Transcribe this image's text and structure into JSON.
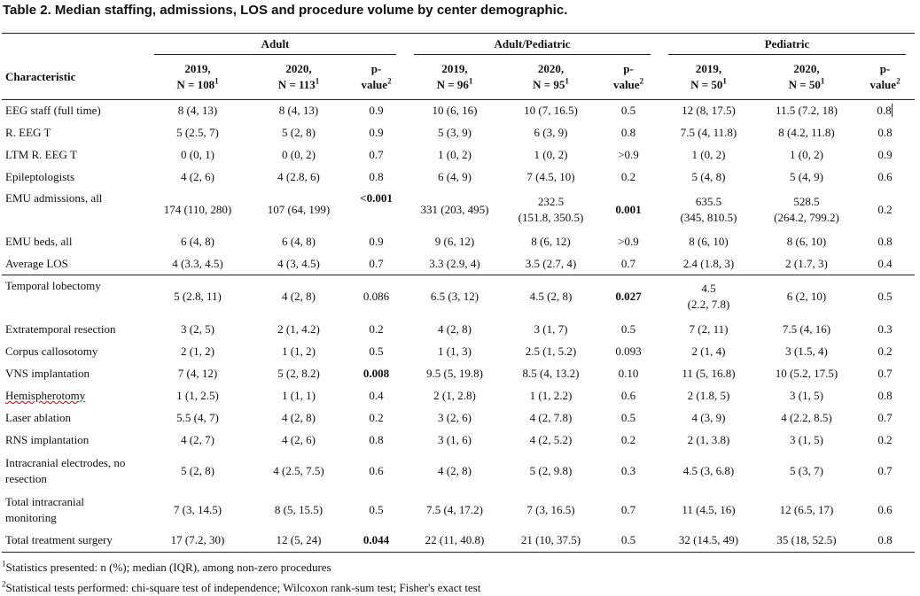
{
  "title": "Table 2. Median staffing, admissions, LOS and procedure volume by center demographic.",
  "groups": {
    "adult": "Adult",
    "adult_ped": "Adult/Pediatric",
    "ped": "Pediatric"
  },
  "header": {
    "characteristic": "Characteristic",
    "y2019": "2019,",
    "y2020": "2020,",
    "p": "p-",
    "pv": "value",
    "n_adult_2019": "N = 108",
    "n_adult_2020": "N = 113",
    "n_ap_2019": "N = 96",
    "n_ap_2020": "N = 95",
    "n_ped_2019": "N = 50",
    "n_ped_2020": "N = 50",
    "sup1": "1",
    "sup2": "2"
  },
  "rows": [
    [
      "EEG staff (full time)",
      "8 (4, 13)",
      "8 (4, 13)",
      "0.9",
      "10 (6, 16)",
      "10 (7, 16.5)",
      "0.5",
      "12 (8, 17.5)",
      "11.5 (7.2, 18)",
      "0.8"
    ],
    [
      "R. EEG T",
      "5 (2.5, 7)",
      "5 (2, 8)",
      "0.9",
      "5 (3, 9)",
      "6 (3, 9)",
      "0.8",
      "7.5 (4, 11.8)",
      "8 (4.2, 11.8)",
      "0.8"
    ],
    [
      "LTM R. EEG T",
      "0 (0, 1)",
      "0 (0, 2)",
      "0.7",
      "1 (0, 2)",
      "1 (0, 2)",
      ">0.9",
      "1 (0, 2)",
      "1 (0, 2)",
      "0.9"
    ],
    [
      "Epileptologists",
      "4 (2, 6)",
      "4 (2.8, 6)",
      "0.8",
      "6 (4, 9)",
      "7 (4.5, 10)",
      "0.2",
      "5 (4, 8)",
      "5 (4, 9)",
      "0.6"
    ],
    [
      "EMU admissions, all",
      "174 (110, 280)",
      "107 (64, 199)",
      "<0.001",
      "331 (203, 495)",
      "232.5",
      "0.001",
      "635.5",
      "528.5",
      "0.2",
      "(151.8, 350.5)",
      "(345, 810.5)",
      "(264.2, 799.2)"
    ],
    [
      "EMU beds, all",
      "6 (4, 8)",
      "6 (4, 8)",
      "0.9",
      "9 (6, 12)",
      "8 (6, 12)",
      ">0.9",
      "8 (6, 10)",
      "8 (6, 10)",
      "0.8"
    ],
    [
      "Average LOS",
      "4 (3.3, 4.5)",
      "4 (3, 4.5)",
      "0.7",
      "3.3 (2.9, 4)",
      "3.5 (2.7, 4)",
      "0.7",
      "2.4 (1.8, 3)",
      "2 (1.7, 3)",
      "0.4"
    ],
    [
      "Temporal lobectomy",
      "5 (2.8, 11)",
      "4 (2, 8)",
      "0.086",
      "6.5 (3, 12)",
      "4.5 (2, 8)",
      "0.027",
      "4.5",
      "6 (2, 10)",
      "0.5",
      "(2.2, 7.8)"
    ],
    [
      "Extratemporal resection",
      "3 (2, 5)",
      "2 (1, 4.2)",
      "0.2",
      "4 (2, 8)",
      "3 (1, 7)",
      "0.5",
      "7 (2, 11)",
      "7.5 (4, 16)",
      "0.3"
    ],
    [
      "Corpus callosotomy",
      "2 (1, 2)",
      "1 (1, 2)",
      "0.5",
      "1 (1, 3)",
      "2.5 (1, 5.2)",
      "0.093",
      "2 (1, 4)",
      "3 (1.5, 4)",
      "0.2"
    ],
    [
      "VNS implantation",
      "7 (4, 12)",
      "5 (2, 8.2)",
      "0.008",
      "9.5 (5, 19.8)",
      "8.5 (4, 13.2)",
      "0.10",
      "11 (5, 16.8)",
      "10 (5.2, 17.5)",
      "0.7"
    ],
    [
      "Hemispherotomy",
      "1 (1, 2.5)",
      "1 (1, 1)",
      "0.4",
      "2 (1, 2.8)",
      "1 (1, 2.2)",
      "0.6",
      "2 (1.8, 5)",
      "3 (1, 5)",
      "0.8"
    ],
    [
      "Laser ablation",
      "5.5 (4, 7)",
      "4 (2, 8)",
      "0.2",
      "3 (2, 6)",
      "4 (2, 7.8)",
      "0.5",
      "4 (3, 9)",
      "4 (2.2, 8.5)",
      "0.7"
    ],
    [
      "RNS implantation",
      "4 (2, 7)",
      "4 (2, 6)",
      "0.8",
      "3 (1, 6)",
      "4 (2, 5.2)",
      "0.2",
      "2 (1, 3.8)",
      "3 (1, 5)",
      "0.2"
    ],
    [
      "Intracranial electrodes, no",
      "5 (2, 8)",
      "4 (2.5, 7.5)",
      "0.6",
      "4 (2, 8)",
      "5 (2, 9.8)",
      "0.3",
      "4.5 (3, 6.8)",
      "5 (3, 7)",
      "0.7",
      "resection"
    ],
    [
      "Total intracranial",
      "7 (3, 14.5)",
      "8 (5, 15.5)",
      "0.5",
      "7.5 (4, 17.2)",
      "7 (3, 16.5)",
      "0.7",
      "11 (4.5, 16)",
      "12 (6.5, 17)",
      "0.6",
      "monitoring"
    ],
    [
      "Total treatment surgery",
      "17 (7.2, 30)",
      "12 (5, 24)",
      "0.044",
      "22 (11, 40.8)",
      "21 (10, 37.5)",
      "0.5",
      "32 (14.5, 49)",
      "35 (18, 52.5)",
      "0.8"
    ]
  ],
  "footnotes": {
    "f1_mark": "1",
    "f1": "Statistics presented: n (%); median (IQR), among non-zero procedures",
    "f2_mark": "2",
    "f2": "Statistical tests performed: chi-square test of independence; Wilcoxon rank-sum test; Fisher's exact test"
  }
}
